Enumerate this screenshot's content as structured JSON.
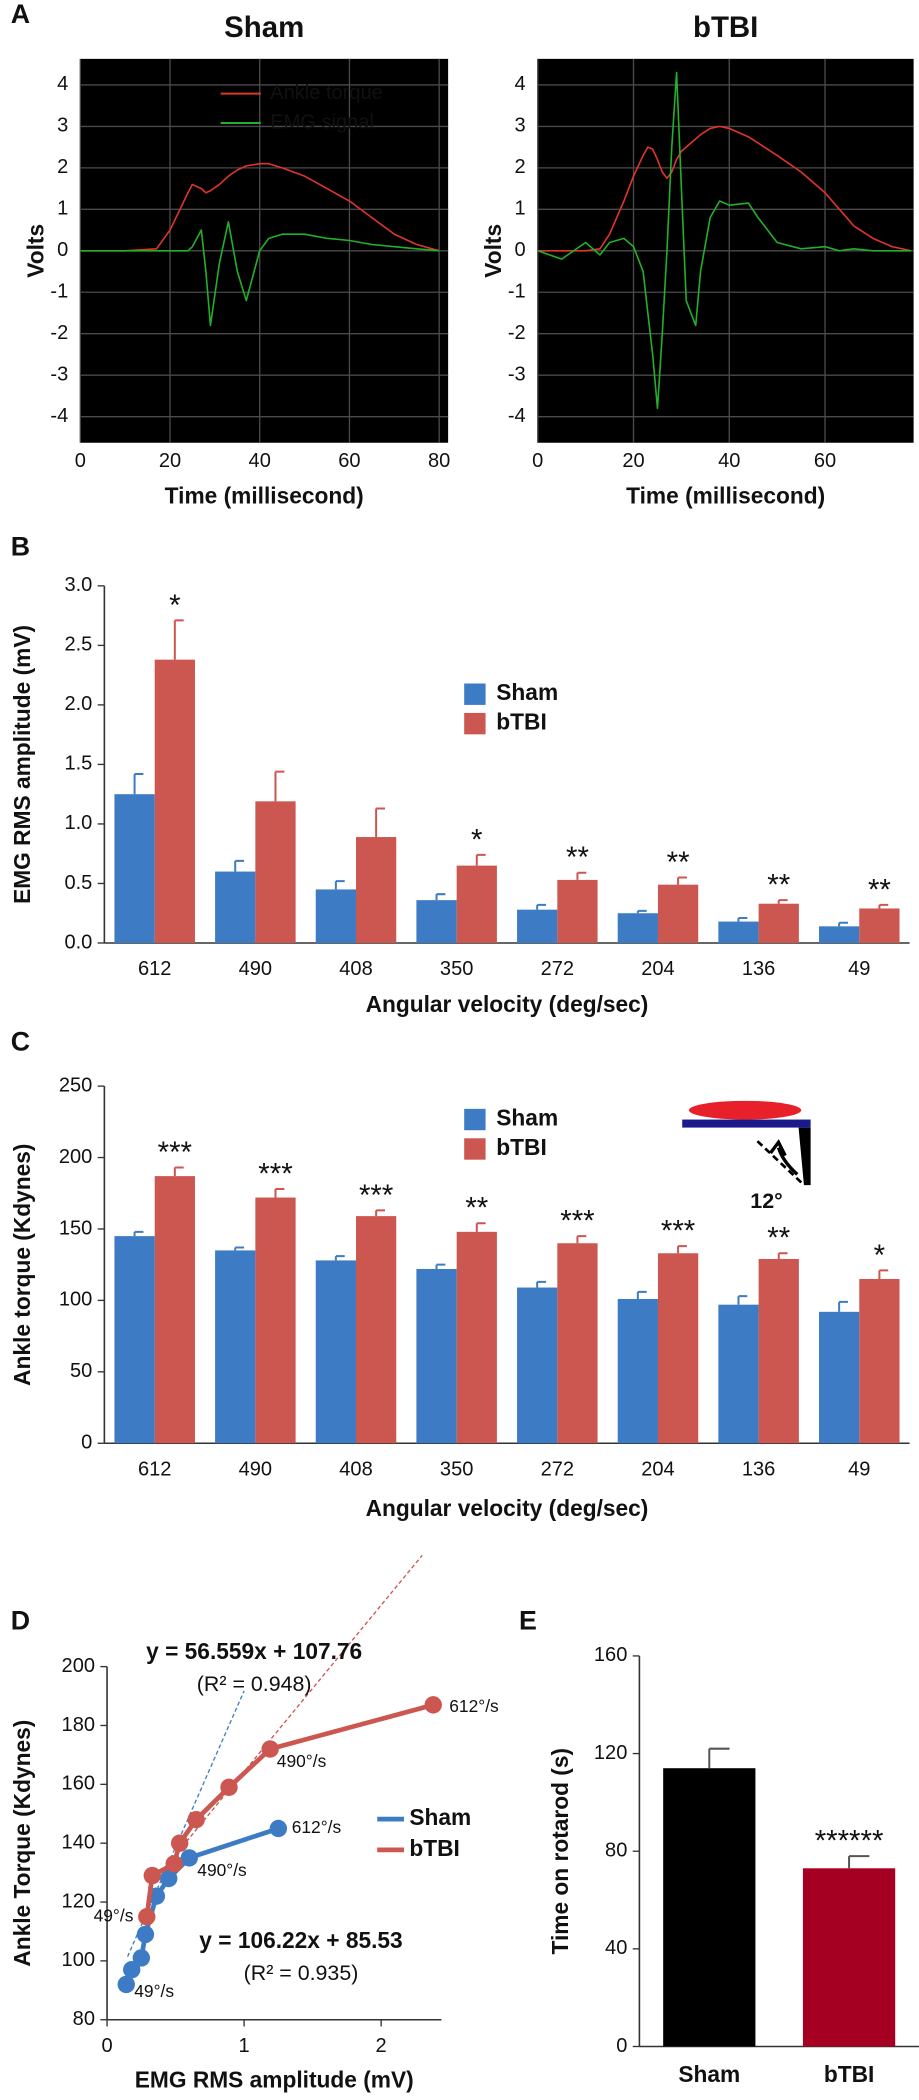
{
  "chart_data": [
    {
      "panel": "A",
      "type": "line",
      "title": "Sham",
      "x_label": "Time (millisecond)",
      "y_label": "Volts",
      "x": [
        0,
        10,
        17,
        20,
        24,
        25,
        27,
        28,
        29,
        31,
        33,
        35,
        37,
        40,
        42,
        45,
        50,
        55,
        60,
        65,
        70,
        75,
        80
      ],
      "series": [
        {
          "name": "Ankle torque",
          "color": "#e0342c",
          "values": [
            0,
            0,
            0.05,
            0.5,
            1.4,
            1.6,
            1.5,
            1.4,
            1.45,
            1.6,
            1.8,
            1.95,
            2.05,
            2.1,
            2.1,
            2.0,
            1.8,
            1.5,
            1.2,
            0.8,
            0.4,
            0.15,
            0
          ]
        },
        {
          "name": "EMG signal",
          "color": "#22b02a",
          "values": [
            0,
            0,
            0,
            0,
            0,
            0.1,
            0.5,
            -0.5,
            -1.8,
            -0.3,
            0.7,
            -0.5,
            -1.2,
            0,
            0.3,
            0.4,
            0.4,
            0.3,
            0.25,
            0.15,
            0.1,
            0.05,
            0
          ]
        }
      ],
      "xlim": [
        0,
        82
      ],
      "xticks": [
        0,
        20,
        40,
        60,
        80
      ],
      "ylim": [
        -4.5,
        4.5
      ],
      "yticks": [
        -4,
        -3,
        -2,
        -1,
        0,
        1,
        2,
        3,
        4
      ],
      "grid": true,
      "background": "#000000",
      "legend": "upper center"
    },
    {
      "type": "line",
      "title": "bTBI",
      "x_label": "Time (millisecond)",
      "y_label": "Volts",
      "x": [
        0,
        5,
        10,
        13,
        15,
        18,
        20,
        22,
        23,
        24,
        25,
        26,
        27,
        28,
        29,
        30,
        31,
        32,
        33,
        34,
        36,
        38,
        40,
        44,
        46,
        50,
        55,
        60,
        63,
        66,
        70,
        74,
        78
      ],
      "series": [
        {
          "color": "#e0342c",
          "values": [
            0,
            0,
            0,
            0.05,
            0.4,
            1.2,
            1.8,
            2.3,
            2.5,
            2.45,
            2.2,
            1.9,
            1.75,
            1.9,
            2.2,
            2.4,
            2.5,
            2.6,
            2.7,
            2.8,
            2.95,
            3.0,
            2.95,
            2.75,
            2.6,
            2.3,
            1.9,
            1.4,
            1.0,
            0.6,
            0.3,
            0.1,
            0
          ]
        },
        {
          "color": "#22b02a",
          "values": [
            0,
            -0.2,
            0.2,
            -0.1,
            0.2,
            0.3,
            0.1,
            -0.5,
            -1.5,
            -2.5,
            -3.8,
            -2.0,
            0,
            2.5,
            4.3,
            1.5,
            -1.2,
            -1.5,
            -1.8,
            -0.5,
            0.8,
            1.2,
            1.1,
            1.15,
            0.8,
            0.2,
            0.05,
            0.1,
            0,
            0.05,
            0,
            0,
            0
          ]
        }
      ],
      "xlim": [
        0,
        78.5
      ],
      "xticks": [
        0,
        20,
        40,
        60
      ],
      "ylim": [
        -4.5,
        4.5
      ],
      "yticks": [
        -4,
        -3,
        -2,
        -1,
        0,
        1,
        2,
        3,
        4
      ],
      "grid": true,
      "background": "#000000"
    },
    {
      "panel": "B",
      "type": "bar",
      "x_label": "Angular velocity (deg/sec)",
      "y_label": "EMG RMS amplitude (mV)",
      "categories": [
        "612",
        "490",
        "408",
        "350",
        "272",
        "204",
        "136",
        "49"
      ],
      "series": [
        {
          "name": "Sham",
          "color": "#3d7cc4",
          "values": [
            1.25,
            0.6,
            0.45,
            0.36,
            0.28,
            0.25,
            0.18,
            0.14
          ],
          "errors": [
            0.17,
            0.09,
            0.07,
            0.05,
            0.04,
            0.02,
            0.03,
            0.03
          ]
        },
        {
          "name": "bTBI",
          "color": "#cc5650",
          "values": [
            2.38,
            1.19,
            0.89,
            0.65,
            0.53,
            0.49,
            0.33,
            0.29
          ],
          "errors": [
            0.33,
            0.25,
            0.24,
            0.09,
            0.06,
            0.06,
            0.03,
            0.03
          ]
        }
      ],
      "annotations": [
        "*",
        null,
        null,
        "*",
        "**",
        "**",
        "**",
        "**"
      ],
      "ylim": [
        0,
        3
      ],
      "yticks": [
        {
          "value": 0,
          "label": "0.0"
        },
        {
          "value": 0.5,
          "label": "0.5"
        },
        {
          "value": 1,
          "label": "1.0"
        },
        {
          "value": 1.5,
          "label": "1.5"
        },
        {
          "value": 2,
          "label": "2.0"
        },
        {
          "value": 2.5,
          "label": "2.5"
        },
        {
          "value": 3,
          "label": "3.0"
        }
      ],
      "legend": "upper center"
    },
    {
      "panel": "C",
      "type": "bar",
      "x_label": "Angular velocity (deg/sec)",
      "y_label": "Ankle torque (Kdynes)",
      "categories": [
        "612",
        "490",
        "408",
        "350",
        "272",
        "204",
        "136",
        "49"
      ],
      "series": [
        {
          "name": "Sham",
          "color": "#3d7cc4",
          "values": [
            145,
            135,
            128,
            122,
            109,
            101,
            97,
            92
          ],
          "errors": [
            3,
            2,
            3,
            3,
            4,
            5,
            6,
            7
          ]
        },
        {
          "name": "bTBI",
          "color": "#cc5650",
          "values": [
            187,
            172,
            159,
            148,
            140,
            133,
            129,
            115
          ],
          "errors": [
            6,
            6,
            4,
            6,
            5,
            5,
            4,
            6
          ]
        }
      ],
      "annotations": [
        "***",
        "***",
        "***",
        "**",
        "***",
        "***",
        "**",
        "*"
      ],
      "inset_label": "12°",
      "ylim": [
        0,
        250
      ],
      "yticks": [
        0,
        50,
        100,
        150,
        200,
        250
      ],
      "legend": "upper center"
    },
    {
      "panel": "D",
      "type": "line",
      "markers": true,
      "x_label": "EMG RMS amplitude (mV)",
      "y_label": "Ankle Torque (Kdynes)",
      "series": [
        {
          "name": "Sham",
          "color": "#3d7cc4",
          "x": [
            1.25,
            0.6,
            0.45,
            0.36,
            0.28,
            0.25,
            0.18,
            0.14
          ],
          "values": [
            145,
            135,
            128,
            122,
            109,
            101,
            97,
            92
          ],
          "point_labels": [
            "612°/s",
            "490°/s",
            null,
            null,
            null,
            null,
            null,
            "49°/s"
          ],
          "fit": {
            "slope": 106.22,
            "intercept": 85.53
          },
          "equation": "y = 106.22x + 85.53",
          "r2_label": "(R² = 0.935)"
        },
        {
          "name": "bTBI",
          "color": "#cc5650",
          "x": [
            2.38,
            1.19,
            0.89,
            0.65,
            0.53,
            0.49,
            0.33,
            0.29
          ],
          "values": [
            187,
            172,
            159,
            148,
            140,
            133,
            129,
            115
          ],
          "point_labels": [
            "612°/s",
            "490°/s",
            null,
            null,
            null,
            null,
            null,
            "49°/s"
          ],
          "fit": {
            "slope": 56.559,
            "intercept": 107.76
          },
          "equation": "y = 56.559x + 107.76",
          "r2_label": "(R² = 0.948)"
        }
      ],
      "xlim": [
        0,
        2.44
      ],
      "xticks": [
        0,
        1,
        2
      ],
      "ylim": [
        80,
        200
      ],
      "yticks": [
        80,
        100,
        120,
        140,
        160,
        180,
        200
      ],
      "legend": "center right"
    },
    {
      "panel": "E",
      "type": "bar",
      "y_label": "Time on rotarod (s)",
      "categories": [
        "Sham",
        "bTBI"
      ],
      "values": [
        114,
        73
      ],
      "errors": [
        8,
        5
      ],
      "colors": [
        "#000000",
        "#a50021"
      ],
      "annotations": [
        null,
        "******"
      ],
      "ylim": [
        0,
        160
      ],
      "yticks": [
        0,
        40,
        80,
        120,
        160
      ]
    }
  ]
}
